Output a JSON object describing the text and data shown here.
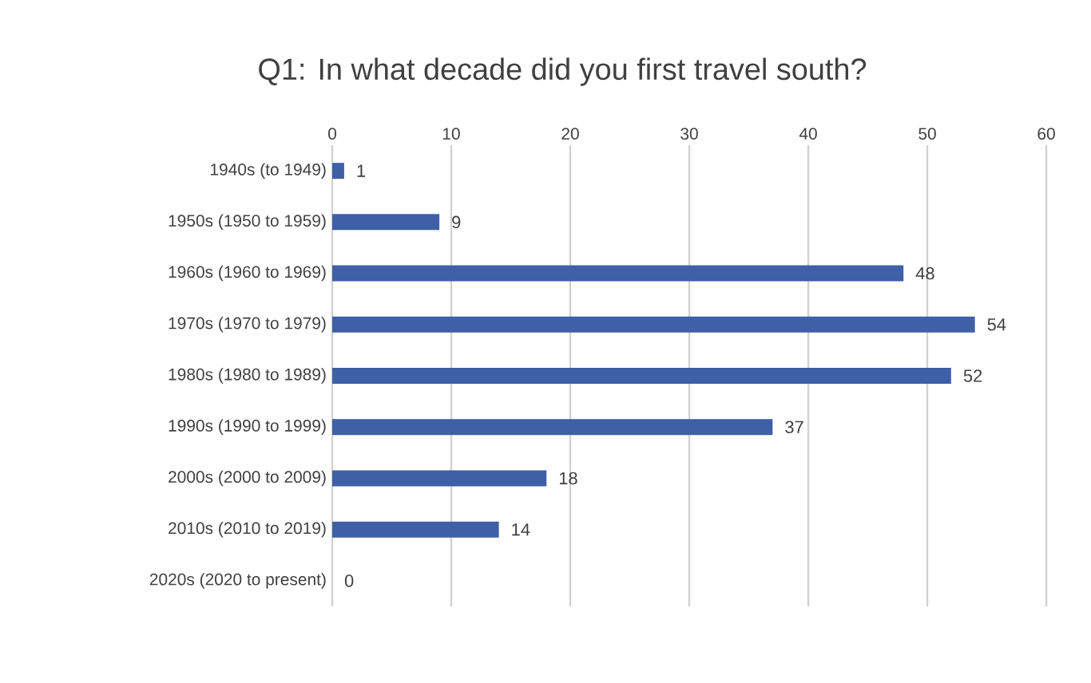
{
  "chart_data": {
    "type": "bar",
    "orientation": "horizontal",
    "title": "Q1: In what decade did you first travel south?",
    "categories": [
      "1940s (to 1949)",
      "1950s (1950 to 1959)",
      "1960s (1960 to 1969)",
      "1970s (1970 to 1979)",
      "1980s (1980 to 1989)",
      "1990s (1990 to 1999)",
      "2000s (2000 to 2009)",
      "2010s (2010 to 2019)",
      "2020s (2020 to present)"
    ],
    "values": [
      1,
      9,
      48,
      54,
      52,
      37,
      18,
      14,
      0
    ],
    "color": "#3f5fa6",
    "xlim": [
      0,
      60
    ],
    "xticks": [
      0,
      10,
      20,
      30,
      40,
      50,
      60
    ],
    "grid": "x",
    "data_labels": true
  }
}
